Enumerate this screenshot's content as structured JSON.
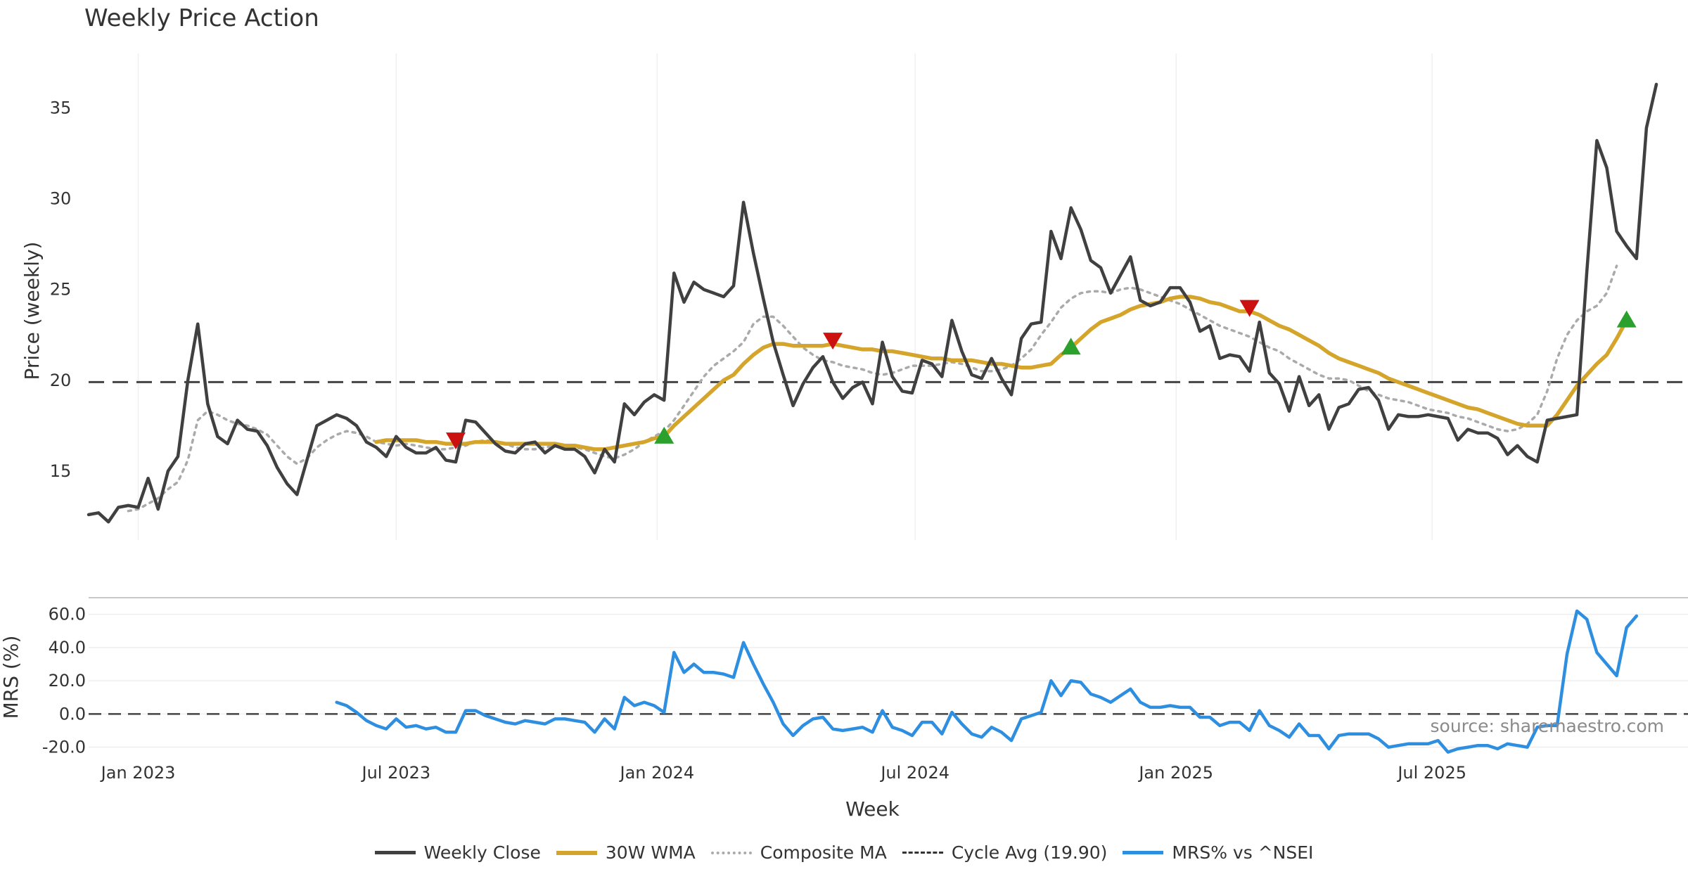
{
  "chart_title": "Weekly Price Action",
  "source_note": "source: sharemaestro.com",
  "chart_data": [
    {
      "type": "line",
      "panel": "price",
      "title": "Weekly Price Action",
      "ylabel": "Price (weekly)",
      "ylim": [
        11.2,
        38
      ],
      "yticks": [
        15,
        20,
        25,
        30,
        35
      ],
      "x_start": "2022-11-27",
      "x_step_days": 7,
      "cycle_avg": 19.9,
      "series": [
        {
          "name": "Weekly Close",
          "color": "#404040",
          "values": [
            12.6,
            12.7,
            12.2,
            13.0,
            13.1,
            13.0,
            14.6,
            12.9,
            15.0,
            15.8,
            20.0,
            23.1,
            18.7,
            16.9,
            16.5,
            17.8,
            17.3,
            17.2,
            16.4,
            15.2,
            14.3,
            13.7,
            15.6,
            17.5,
            17.8,
            18.1,
            17.9,
            17.5,
            16.6,
            16.3,
            15.8,
            16.9,
            16.3,
            16.0,
            16.0,
            16.3,
            15.6,
            15.5,
            17.8,
            17.7,
            17.1,
            16.5,
            16.1,
            16.0,
            16.5,
            16.6,
            16.0,
            16.4,
            16.2,
            16.2,
            15.8,
            14.9,
            16.2,
            15.5,
            18.7,
            18.1,
            18.8,
            19.2,
            18.9,
            25.9,
            24.3,
            25.4,
            25.0,
            24.8,
            24.6,
            25.2,
            29.8,
            27.0,
            24.5,
            22.1,
            20.3,
            18.6,
            19.8,
            20.7,
            21.3,
            19.9,
            19.0,
            19.6,
            19.9,
            18.7,
            22.1,
            20.2,
            19.4,
            19.3,
            21.1,
            20.9,
            20.2,
            23.3,
            21.6,
            20.3,
            20.1,
            21.2,
            20.1,
            19.2,
            22.3,
            23.1,
            23.2,
            28.2,
            26.7,
            29.5,
            28.3,
            26.6,
            26.2,
            24.8,
            25.8,
            26.8,
            24.4,
            24.1,
            24.3,
            25.1,
            25.1,
            24.3,
            22.7,
            23.0,
            21.2,
            21.4,
            21.3,
            20.5,
            23.2,
            20.4,
            19.8,
            18.3,
            20.2,
            18.6,
            19.2,
            17.3,
            18.5,
            18.7,
            19.5,
            19.6,
            18.9,
            17.3,
            18.1,
            18.0,
            18.0,
            18.1,
            18.0,
            17.9,
            16.7,
            17.3,
            17.1,
            17.1,
            16.8,
            15.9,
            16.4,
            15.8,
            15.5,
            17.8,
            17.9,
            18.0,
            18.1,
            26.0,
            33.2,
            31.7,
            28.2,
            27.4,
            26.7,
            33.9,
            36.3
          ]
        },
        {
          "name": "30W WMA",
          "color": "#d4a52a",
          "start_index": 29,
          "values": [
            16.6,
            16.7,
            16.7,
            16.7,
            16.7,
            16.6,
            16.6,
            16.5,
            16.5,
            16.5,
            16.6,
            16.6,
            16.6,
            16.5,
            16.5,
            16.5,
            16.5,
            16.5,
            16.5,
            16.4,
            16.4,
            16.3,
            16.2,
            16.2,
            16.3,
            16.4,
            16.5,
            16.6,
            16.8,
            16.9,
            17.5,
            18.0,
            18.5,
            19.0,
            19.5,
            20.0,
            20.3,
            20.9,
            21.4,
            21.8,
            22.0,
            22.0,
            21.9,
            21.9,
            21.9,
            21.9,
            22.0,
            21.9,
            21.8,
            21.7,
            21.7,
            21.6,
            21.6,
            21.5,
            21.4,
            21.3,
            21.2,
            21.2,
            21.1,
            21.1,
            21.1,
            21.0,
            20.9,
            20.9,
            20.8,
            20.7,
            20.7,
            20.8,
            20.9,
            21.4,
            21.8,
            22.3,
            22.8,
            23.2,
            23.4,
            23.6,
            23.9,
            24.1,
            24.2,
            24.3,
            24.5,
            24.6,
            24.6,
            24.5,
            24.3,
            24.2,
            24.0,
            23.8,
            23.8,
            23.6,
            23.3,
            23.0,
            22.8,
            22.5,
            22.2,
            21.9,
            21.5,
            21.2,
            21.0,
            20.8,
            20.6,
            20.4,
            20.1,
            19.9,
            19.7,
            19.5,
            19.3,
            19.1,
            18.9,
            18.7,
            18.5,
            18.4,
            18.2,
            18.0,
            17.8,
            17.6,
            17.5,
            17.5,
            17.5,
            18.1,
            18.9,
            19.7,
            20.3,
            20.9,
            21.4,
            22.3,
            23.3
          ]
        },
        {
          "name": "Composite MA",
          "color": "#aaaaaa",
          "start_index": 4,
          "values": [
            12.8,
            12.9,
            13.2,
            13.5,
            14.0,
            14.4,
            15.6,
            17.8,
            18.3,
            18.1,
            17.8,
            17.6,
            17.5,
            17.3,
            17.0,
            16.4,
            15.8,
            15.4,
            15.7,
            16.3,
            16.7,
            17.0,
            17.2,
            17.1,
            16.9,
            16.6,
            16.5,
            16.4,
            16.5,
            16.4,
            16.3,
            16.2,
            16.2,
            16.3,
            16.4,
            16.6,
            16.7,
            16.6,
            16.5,
            16.3,
            16.2,
            16.2,
            16.3,
            16.4,
            16.4,
            16.3,
            16.2,
            16.0,
            15.8,
            15.7,
            15.9,
            16.2,
            16.6,
            16.9,
            17.2,
            17.8,
            18.6,
            19.4,
            20.2,
            20.8,
            21.2,
            21.6,
            22.1,
            23.1,
            23.5,
            23.5,
            23.0,
            22.4,
            21.8,
            21.4,
            21.1,
            21.0,
            20.8,
            20.7,
            20.6,
            20.4,
            20.3,
            20.4,
            20.6,
            20.8,
            20.8,
            20.8,
            20.9,
            21.0,
            20.9,
            20.7,
            20.5,
            20.5,
            20.6,
            20.8,
            21.2,
            21.7,
            22.5,
            23.2,
            24.0,
            24.5,
            24.8,
            24.9,
            24.9,
            24.8,
            25.0,
            25.1,
            25.0,
            24.8,
            24.6,
            24.4,
            24.2,
            23.9,
            23.6,
            23.3,
            23.0,
            22.8,
            22.6,
            22.4,
            22.1,
            21.8,
            21.6,
            21.2,
            20.9,
            20.6,
            20.3,
            20.1,
            20.1,
            20.0,
            19.7,
            19.4,
            19.2,
            19.0,
            18.9,
            18.8,
            18.6,
            18.4,
            18.3,
            18.2,
            18.0,
            17.9,
            17.7,
            17.5,
            17.3,
            17.2,
            17.3,
            17.6,
            18.1,
            19.4,
            21.2,
            22.5,
            23.3,
            23.8,
            24.1,
            24.8,
            26.3
          ]
        }
      ],
      "signals": [
        {
          "index": 37,
          "direction": "down",
          "color": "#cc1111"
        },
        {
          "index": 58,
          "direction": "up",
          "color": "#2ca02c"
        },
        {
          "index": 75,
          "direction": "down",
          "color": "#cc1111"
        },
        {
          "index": 99,
          "direction": "up",
          "color": "#2ca02c"
        },
        {
          "index": 117,
          "direction": "down",
          "color": "#cc1111"
        },
        {
          "index": 155,
          "direction": "up",
          "color": "#2ca02c"
        }
      ]
    },
    {
      "type": "line",
      "panel": "mrs",
      "ylabel": "MRS (%)",
      "xlabel": "Week",
      "ylim": [
        -24,
        70
      ],
      "yticks": [
        "-20.0",
        "0.0",
        "20.0",
        "40.0",
        "60.0"
      ],
      "x_ticks": [
        {
          "label": "Jan 2023",
          "index": 5
        },
        {
          "label": "Jul 2023",
          "index": 31
        },
        {
          "label": "Jan 2024",
          "index": 57.3
        },
        {
          "label": "Jul 2024",
          "index": 83.3
        },
        {
          "label": "Jan 2025",
          "index": 109.6
        },
        {
          "label": "Jul 2025",
          "index": 135.4
        }
      ],
      "series": [
        {
          "name": "MRS% vs ^NSEI",
          "color": "#2e8fe0",
          "start_index": 25,
          "values": [
            7,
            5,
            1,
            -4,
            -7,
            -9,
            -3,
            -8,
            -7,
            -9,
            -8,
            -11,
            -11,
            2,
            2,
            -1,
            -3,
            -5,
            -6,
            -4,
            -5,
            -6,
            -3,
            -3,
            -4,
            -5,
            -11,
            -3,
            -9,
            10,
            5,
            7,
            5,
            1,
            37,
            25,
            30,
            25,
            25,
            24,
            22,
            43,
            30,
            18,
            7,
            -6,
            -13,
            -7,
            -3,
            -2,
            -9,
            -10,
            -9,
            -8,
            -11,
            2,
            -8,
            -10,
            -13,
            -5,
            -5,
            -12,
            1,
            -6,
            -12,
            -14,
            -8,
            -11,
            -16,
            -3,
            -1,
            1,
            20,
            11,
            20,
            19,
            12,
            10,
            7,
            11,
            15,
            7,
            4,
            4,
            5,
            4,
            4,
            -2,
            -2,
            -7,
            -5,
            -5,
            -10,
            2,
            -7,
            -10,
            -14,
            -6,
            -13,
            -13,
            -21,
            -13,
            -12,
            -12,
            -12,
            -15,
            -20,
            -19,
            -18,
            -18,
            -18,
            -16,
            -23,
            -21,
            -20,
            -19,
            -19,
            -21,
            -18,
            -19,
            -20,
            -8,
            -7,
            -7,
            36,
            62,
            57,
            37,
            30,
            23,
            52,
            59
          ]
        }
      ]
    }
  ],
  "legend": [
    {
      "label": "Weekly Close",
      "color": "#404040",
      "style": "solid"
    },
    {
      "label": "30W WMA",
      "color": "#d4a52a",
      "style": "solid"
    },
    {
      "label": "Composite MA",
      "color": "#aaaaaa",
      "style": "dotted"
    },
    {
      "label": "Cycle Avg (19.90)",
      "color": "#333333",
      "style": "dashed"
    },
    {
      "label": "MRS% vs ^NSEI",
      "color": "#2e8fe0",
      "style": "solid"
    }
  ]
}
